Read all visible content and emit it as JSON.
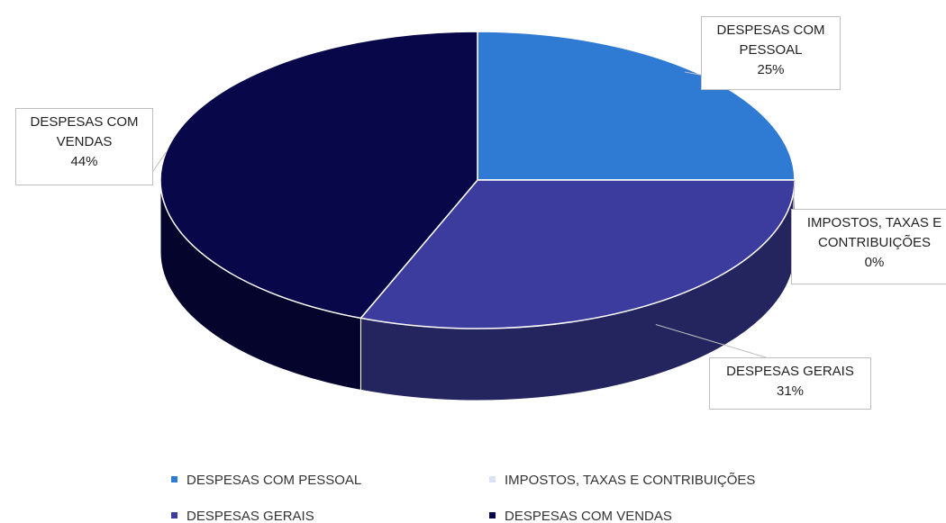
{
  "chart_data": {
    "type": "pie",
    "categories": [
      "DESPESAS COM PESSOAL",
      "IMPOSTOS, TAXAS E CONTRIBUIÇÕES",
      "DESPESAS GERAIS",
      "DESPESAS COM VENDAS"
    ],
    "values": [
      25,
      0,
      31,
      44
    ],
    "value_labels": [
      "25%",
      "0%",
      "31%",
      "44%"
    ],
    "colors": [
      "#2f7ad2",
      "#d9e3f3",
      "#3c3c9e",
      "#07074a"
    ],
    "legend": "bottom",
    "style": "3d"
  }
}
